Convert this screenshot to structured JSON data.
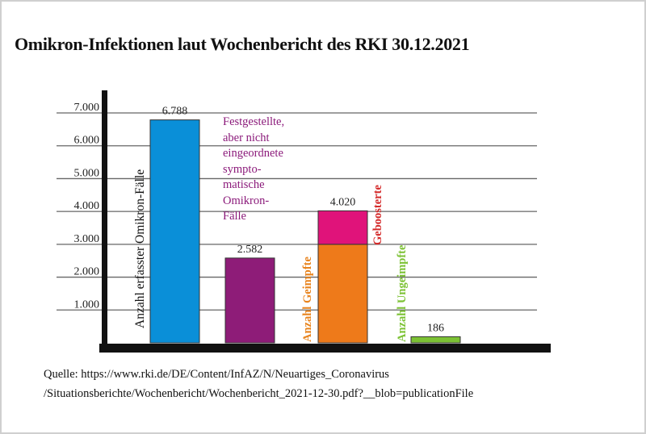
{
  "title": "Omikron-Infektionen laut Wochenbericht des RKI 30.12.2021",
  "source": {
    "line1": "Quelle: https://www.rki.de/DE/Content/InfAZ/N/Neuartiges_Coronavirus",
    "line2": "/Situationsberichte/Wochenbericht/Wochenbericht_2021-12-30.pdf?__blob=publicationFile"
  },
  "annotation": [
    "Festgestellte,",
    "aber nicht",
    "eingeordnete",
    "sympto-",
    "matische",
    "Omikron-",
    "Fälle"
  ],
  "chart_data": {
    "type": "bar",
    "title": "Omikron-Infektionen laut Wochenbericht des RKI 30.12.2021",
    "ylim": [
      0,
      7000
    ],
    "yticks": [
      1000,
      2000,
      3000,
      4000,
      5000,
      6000,
      7000
    ],
    "ytick_labels": [
      "1.000",
      "2.000",
      "3.000",
      "4.000",
      "5.000",
      "6.000",
      "7.000"
    ],
    "grid": true,
    "bars": [
      {
        "label": "Anzahl erfasster Omikron-Fälle",
        "value": 6788,
        "value_label": "6.788",
        "color": "#0a8fd8",
        "label_color": "#111111"
      },
      {
        "label": "",
        "value": 2582,
        "value_label": "2.582",
        "color": "#8e1c78",
        "label_color": "#8e1c78"
      },
      {
        "label": "Anzahl Geimpfte",
        "value": 4020,
        "value_label": "4.020",
        "color": "#ee7a1a",
        "label_color": "#e8841e",
        "segments": [
          {
            "label": "Anzahl Geimpfte",
            "value": 3000,
            "color": "#ee7a1a"
          },
          {
            "label": "Geboosterte",
            "value": 1020,
            "color": "#e0137a",
            "label_color": "#d42a2a"
          }
        ]
      },
      {
        "label": "Anzahl Ungeimpfte",
        "value": 186,
        "value_label": "186",
        "color": "#7cc234",
        "label_color": "#7cc234"
      }
    ]
  }
}
